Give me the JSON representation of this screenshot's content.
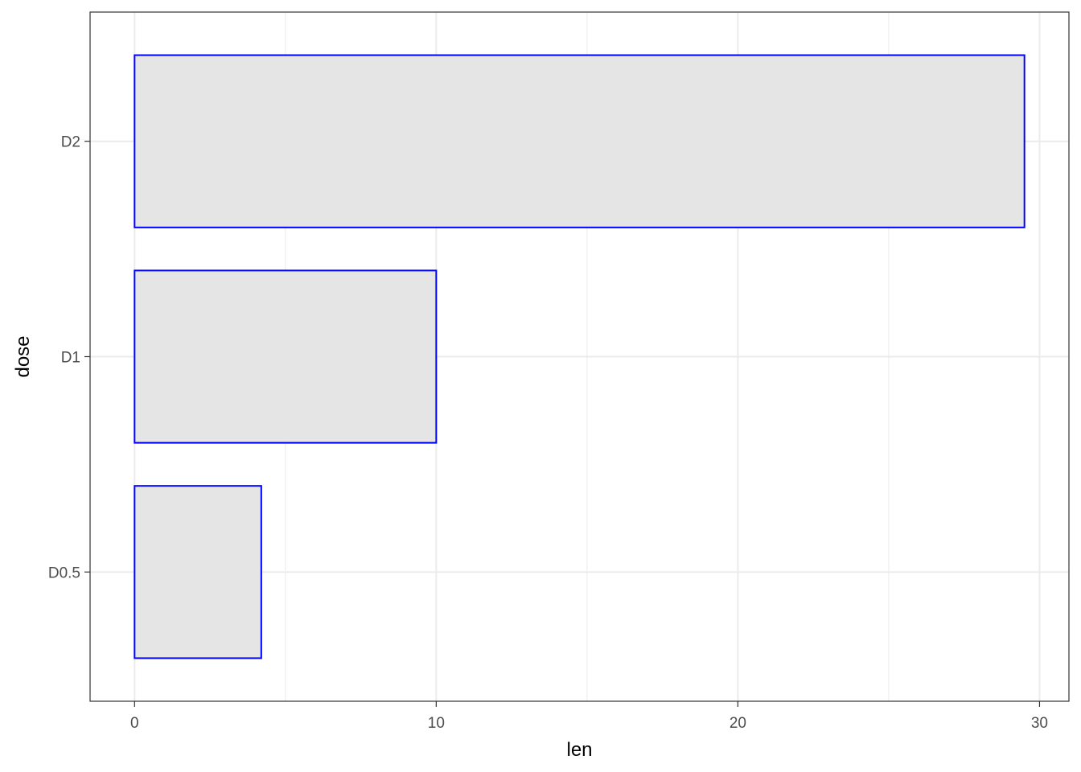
{
  "chart_data": {
    "type": "bar",
    "orientation": "horizontal",
    "categories": [
      "D0.5",
      "D1",
      "D2"
    ],
    "values": [
      4.2,
      10,
      29.5
    ],
    "xlabel": "len",
    "ylabel": "dose",
    "xlim": [
      -1.475,
      30.975
    ],
    "xticks": [
      0,
      10,
      20,
      30
    ],
    "grid": true,
    "colors": {
      "bar_fill": "#e5e5e5",
      "bar_stroke": "#0000ff",
      "grid": "#ebebeb",
      "panel_border": "#333333"
    }
  }
}
